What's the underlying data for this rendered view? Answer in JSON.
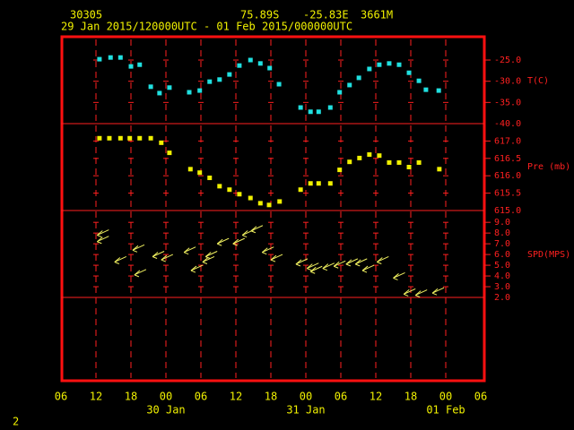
{
  "header": {
    "station": "30305",
    "latitude": "75.89S",
    "longitude": "-25.83E",
    "elevation": "3661M",
    "period": "29 Jan 2015/120000UTC - 01 Feb 2015/000000UTC"
  },
  "page_number": "2",
  "chart_data": [
    {
      "type": "scatter",
      "marker": "square",
      "color": "#20e0e0",
      "ylabel": "T(C)",
      "x": [
        6.6,
        8.5,
        10.2,
        12,
        13.5,
        15.4,
        16.9,
        18.6,
        22,
        23.8,
        25.5,
        27.2,
        28.9,
        30.6,
        32.5,
        34.2,
        35.8,
        37.4,
        41.1,
        42.8,
        44.2,
        46.2,
        47.8,
        49.5,
        51.1,
        52.9,
        54.6,
        56.3,
        58,
        59.7,
        61.4,
        62.6,
        64.8
      ],
      "values": [
        -24.8,
        -24.4,
        -24.4,
        -26.5,
        -26.1,
        -31.3,
        -32.8,
        -31.5,
        -32.6,
        -32.2,
        -30.1,
        -29.6,
        -28.4,
        -26.3,
        -25,
        -25.8,
        -26.9,
        -30.7,
        -36.2,
        -37.2,
        -37.2,
        -36.2,
        -32.6,
        -30.9,
        -29.2,
        -27.1,
        -26.1,
        -25.8,
        -26.1,
        -28,
        -29.9,
        -32,
        -32.2
      ],
      "ylim": [
        -40,
        -19.5
      ],
      "yticks": [
        {
          "value": -25,
          "label": "-25.0"
        },
        {
          "value": -30,
          "label": "-30.0"
        },
        {
          "value": -35,
          "label": "-35.0"
        },
        {
          "value": -40,
          "label": "-40.0"
        }
      ]
    },
    {
      "type": "scatter",
      "marker": "square",
      "color": "#f0f000",
      "ylabel": "Pre (mb)",
      "x": [
        6.6,
        8.3,
        10.2,
        11.8,
        13.5,
        15.4,
        17.2,
        18.6,
        22.2,
        23.8,
        25.5,
        27.2,
        28.9,
        30.6,
        32.5,
        34.2,
        35.7,
        37.5,
        41.1,
        42.8,
        44.2,
        46.2,
        47.8,
        49.5,
        51.2,
        52.9,
        54.6,
        56.3,
        58,
        59.7,
        61.4,
        64.9
      ],
      "values": [
        617.08,
        617.08,
        617.08,
        617.08,
        617.08,
        617.08,
        616.95,
        616.66,
        616.19,
        616.09,
        615.94,
        615.7,
        615.6,
        615.47,
        615.36,
        615.21,
        615.16,
        615.26,
        615.6,
        615.78,
        615.78,
        615.78,
        616.17,
        616.4,
        616.51,
        616.61,
        616.58,
        616.38,
        616.38,
        616.25,
        616.38,
        616.19
      ],
      "ylim": [
        615,
        617.5
      ],
      "yticks": [
        {
          "value": 617,
          "label": "617.0"
        },
        {
          "value": 616.5,
          "label": "616.5"
        },
        {
          "value": 616,
          "label": "616.0"
        },
        {
          "value": 615.5,
          "label": "615.5"
        },
        {
          "value": 615,
          "label": "615.0"
        }
      ]
    },
    {
      "type": "scatter",
      "marker": "arrow",
      "color": "#f0f060",
      "ylabel": "SPD(MPS)",
      "x": [
        6.2,
        6.2,
        9.2,
        12.3,
        12.6,
        15.7,
        17.2,
        21.1,
        22.3,
        24.3,
        24.8,
        26.8,
        29.5,
        31.1,
        32.6,
        34.5,
        36,
        40.3,
        42.2,
        42.8,
        44.9,
        46.8,
        48.9,
        50.5,
        51.7,
        54.2,
        57,
        58.8,
        60.8,
        63.7
      ],
      "values": [
        7.8,
        7.2,
        5.3,
        6.4,
        4.1,
        5.8,
        5.5,
        6.2,
        4.5,
        5.3,
        5.8,
        7,
        7,
        7.8,
        8.2,
        6.2,
        5.5,
        5.1,
        4.7,
        4.4,
        4.7,
        4.9,
        5.1,
        5.1,
        4.5,
        5.3,
        3.8,
        2.3,
        2.2,
        2.4
      ],
      "ylim": [
        2,
        10.1
      ],
      "yticks": [
        {
          "value": 9,
          "label": "9.0"
        },
        {
          "value": 8,
          "label": "8.0"
        },
        {
          "value": 7,
          "label": "7.0"
        },
        {
          "value": 6,
          "label": "6.0"
        },
        {
          "value": 5,
          "label": "5.0"
        },
        {
          "value": 4,
          "label": "4.0"
        },
        {
          "value": 3,
          "label": "3.0"
        },
        {
          "value": 2,
          "label": "2.0"
        }
      ],
      "xlim": [
        0,
        72
      ],
      "xticks": [
        {
          "value": 0,
          "label": "06"
        },
        {
          "value": 6,
          "label": "12"
        },
        {
          "value": 12,
          "label": "18"
        },
        {
          "value": 18,
          "label": "00"
        },
        {
          "value": 24,
          "label": "06"
        },
        {
          "value": 30,
          "label": "12"
        },
        {
          "value": 36,
          "label": "18"
        },
        {
          "value": 42,
          "label": "00"
        },
        {
          "value": 48,
          "label": "06"
        },
        {
          "value": 54,
          "label": "12"
        },
        {
          "value": 60,
          "label": "18"
        },
        {
          "value": 66,
          "label": "00"
        },
        {
          "value": 72,
          "label": "06"
        }
      ],
      "date_labels": [
        {
          "value": 18,
          "label": "30 Jan"
        },
        {
          "value": 42,
          "label": "31 Jan"
        },
        {
          "value": 66,
          "label": "01 Feb"
        }
      ]
    }
  ]
}
